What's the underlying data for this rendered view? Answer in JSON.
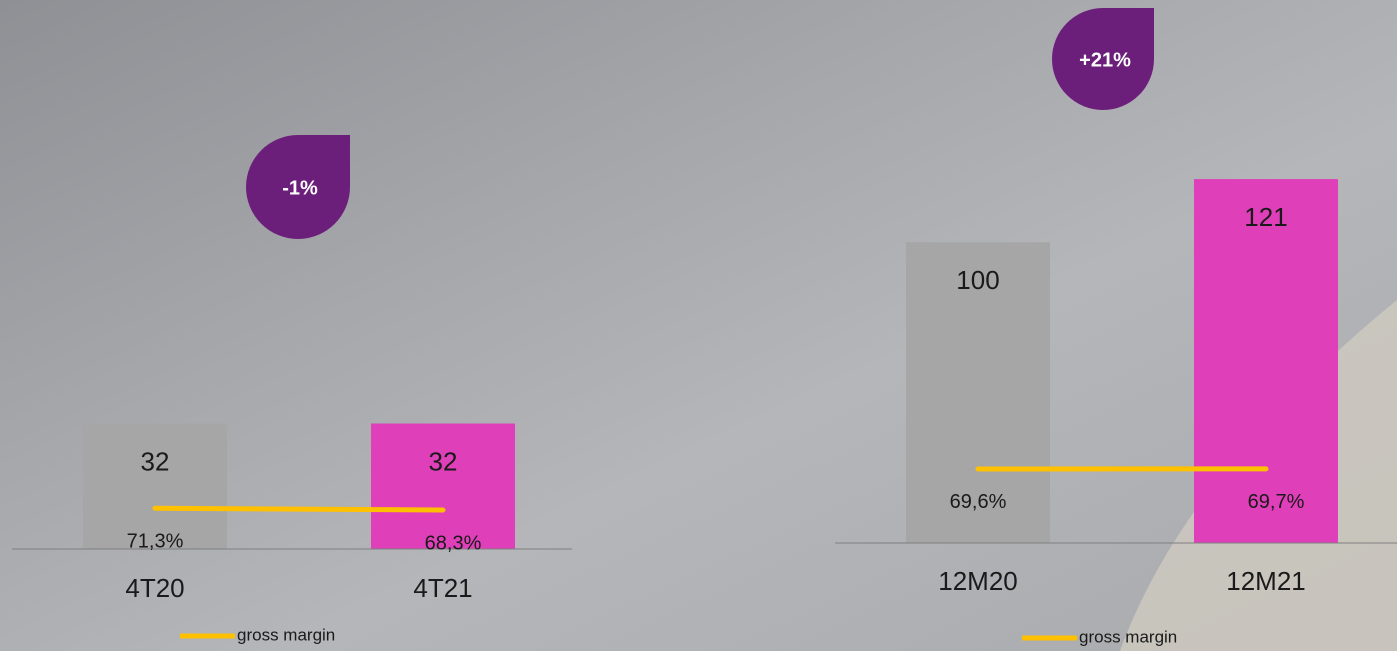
{
  "chart_data": [
    {
      "type": "bar",
      "categories": [
        "4T20",
        "4T21"
      ],
      "values": [
        32,
        32
      ],
      "colors": [
        "#a6a6a6",
        "#df3fb8"
      ],
      "ylim": [
        0,
        102
      ],
      "series": [
        {
          "name": "gross margin",
          "color": "#ffc000",
          "values": [
            71.3,
            68.3
          ],
          "value_labels": [
            "71,3%",
            "68,3%"
          ],
          "axis": "y2"
        }
      ],
      "y2lim": [
        0,
        700
      ],
      "annotation": "-1%"
    },
    {
      "type": "bar",
      "categories": [
        "12M20",
        "12M21"
      ],
      "values": [
        100,
        121
      ],
      "colors": [
        "#a6a6a6",
        "#df3fb8"
      ],
      "ylim": [
        0,
        133
      ],
      "series": [
        {
          "name": "gross margin",
          "color": "#ffc000",
          "values": [
            69.6,
            69.7
          ],
          "value_labels": [
            "69,6%",
            "69,7%"
          ],
          "axis": "y2"
        }
      ],
      "y2lim": [
        0,
        376
      ],
      "annotation": "+21%"
    }
  ]
}
